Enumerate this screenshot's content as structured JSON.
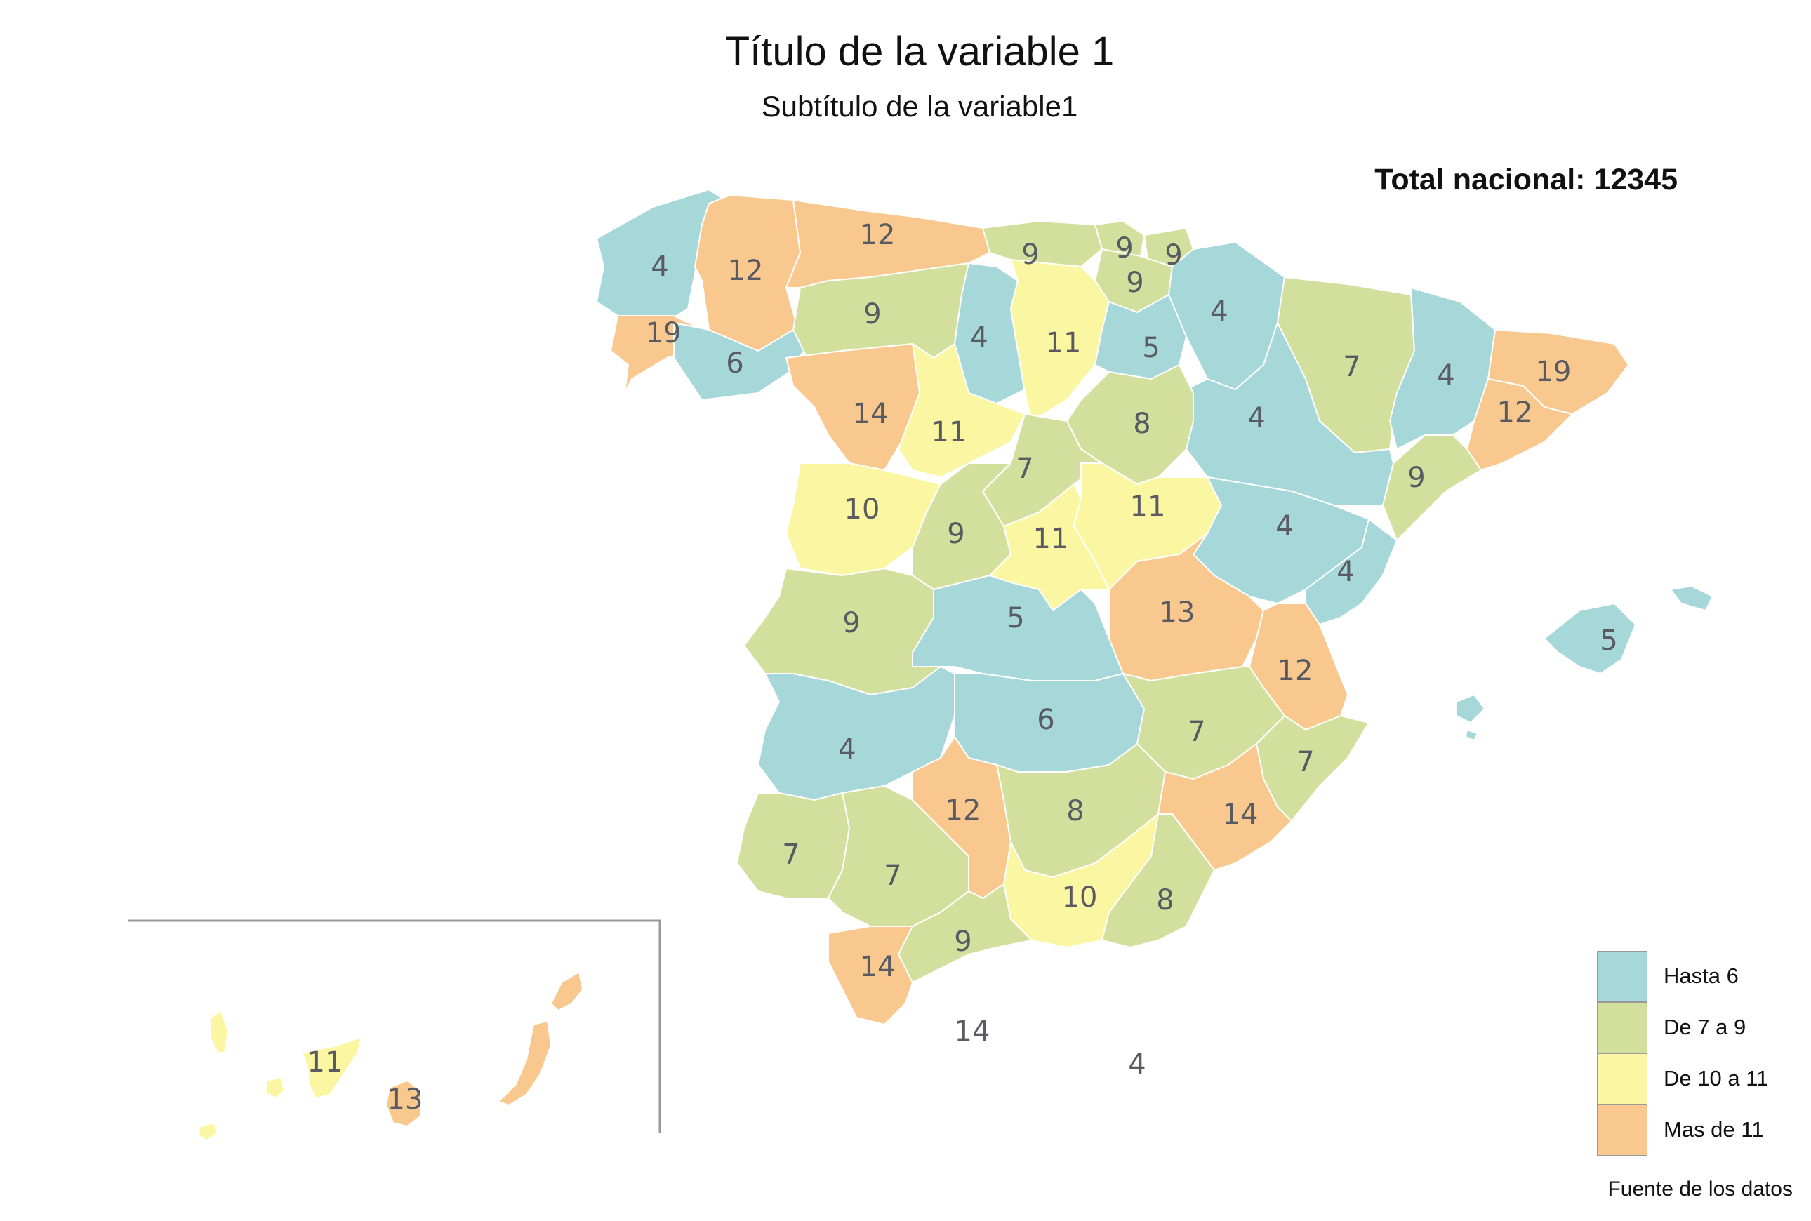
{
  "title": "Título de la variable 1",
  "subtitle": "Subtítulo de la variable1",
  "total": "Total nacional: 12345",
  "source": "Fuente de los datos",
  "colors": {
    "hasta6": "#a6d7d9",
    "de7a9": "#d3e09d",
    "de10a11": "#fbf6a2",
    "mas11": "#f9c88e"
  },
  "legend": [
    {
      "label": "Hasta 6",
      "color": "#a6d7d9"
    },
    {
      "label": "De 7 a 9",
      "color": "#d3e09d"
    },
    {
      "label": "De 10 a 11",
      "color": "#fbf6a2"
    },
    {
      "label": "Mas de 11",
      "color": "#f9c88e"
    }
  ],
  "provinces": {
    "a_coruna": "4",
    "lugo": "12",
    "asturias": "12",
    "cantabria": "9",
    "bizkaia": "9",
    "gipuzkoa": "9",
    "alava": "9",
    "navarra": "4",
    "huesca": "7",
    "lleida": "4",
    "girona": "19",
    "barcelona": "12",
    "tarragona": "9",
    "pontevedra": "19",
    "ourense": "6",
    "leon": "9",
    "palencia": "4",
    "burgos": "11",
    "la_rioja": "5",
    "zaragoza": "4",
    "zamora": "14",
    "valladolid": "11",
    "soria": "8",
    "segovia": "7",
    "salamanca": "10",
    "avila": "9",
    "madrid": "11",
    "guadalajara": "11",
    "teruel": "4",
    "castellon": "4",
    "caceres": "9",
    "toledo": "5",
    "cuenca": "13",
    "valencia": "12",
    "badajoz": "4",
    "ciudad_real": "6",
    "albacete": "7",
    "alicante": "7",
    "cordoba": "12",
    "jaen": "8",
    "murcia": "14",
    "huelva": "7",
    "sevilla": "7",
    "granada": "10",
    "almeria": "8",
    "malaga": "9",
    "cadiz": "14",
    "ceuta": "14",
    "melilla": "4",
    "baleares": "5",
    "tenerife": "11",
    "las_palmas": "13"
  }
}
